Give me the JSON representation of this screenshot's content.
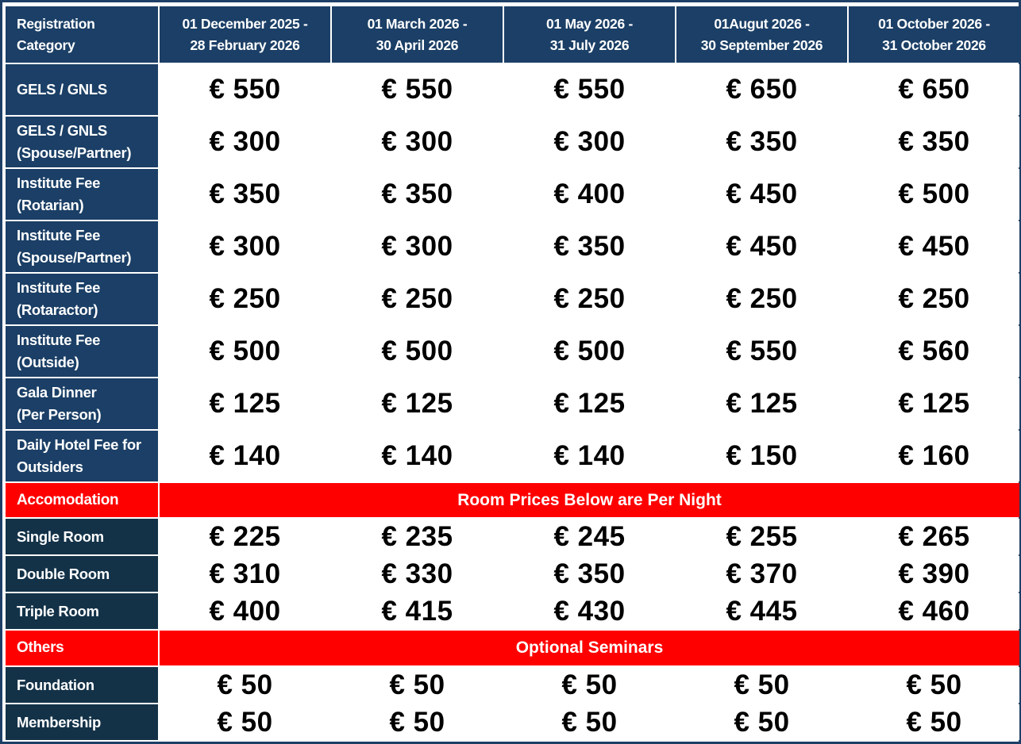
{
  "header": {
    "category": "Registration\nCategory",
    "periods": [
      "01 December 2025 -\n28 February 2026",
      "01 March 2026  -\n30 April 2026",
      "01 May 2026 -\n31 July 2026",
      "01Augut 2026 -\n30 September 2026",
      "01 October 2026  -\n31 October 2026"
    ]
  },
  "registration_rows": [
    {
      "label": "GELS / GNLS",
      "values": [
        "€ 550",
        "€ 550",
        "€ 550",
        "€ 650",
        "€ 650"
      ]
    },
    {
      "label": "GELS / GNLS\n(Spouse/Partner)",
      "values": [
        "€ 300",
        "€ 300",
        "€ 300",
        "€ 350",
        "€ 350"
      ]
    },
    {
      "label": "Institute Fee\n(Rotarian)",
      "values": [
        "€ 350",
        "€ 350",
        "€ 400",
        "€ 450",
        "€ 500"
      ]
    },
    {
      "label": "Institute Fee\n(Spouse/Partner)",
      "values": [
        "€ 300",
        "€ 300",
        "€ 350",
        "€ 450",
        "€ 450"
      ]
    },
    {
      "label": "Institute Fee\n(Rotaractor)",
      "values": [
        "€ 250",
        "€ 250",
        "€ 250",
        "€ 250",
        "€ 250"
      ]
    },
    {
      "label": "Institute Fee\n(Outside)",
      "values": [
        "€ 500",
        "€ 500",
        "€ 500",
        "€ 550",
        "€ 560"
      ]
    },
    {
      "label": "Gala Dinner\n(Per Person)",
      "values": [
        "€ 125",
        "€ 125",
        "€ 125",
        "€ 125",
        "€ 125"
      ]
    },
    {
      "label": "Daily Hotel Fee for\nOutsiders",
      "values": [
        "€ 140",
        "€ 140",
        "€ 140",
        "€ 150",
        "€ 160"
      ]
    }
  ],
  "accommodation": {
    "label": "Accomodation",
    "note": "Room Prices Below are Per Night",
    "rows": [
      {
        "label": "Single Room",
        "values": [
          "€ 225",
          "€ 235",
          "€ 245",
          "€ 255",
          "€ 265"
        ]
      },
      {
        "label": "Double Room",
        "values": [
          "€ 310",
          "€ 330",
          "€ 350",
          "€ 370",
          "€ 390"
        ]
      },
      {
        "label": "Triple Room",
        "values": [
          "€ 400",
          "€ 415",
          "€ 430",
          "€ 445",
          "€ 460"
        ]
      }
    ]
  },
  "others": {
    "label": "Others",
    "note": "Optional Seminars",
    "rows": [
      {
        "label": "Foundation",
        "values": [
          "€ 50",
          "€ 50",
          "€ 50",
          "€ 50",
          "€ 50"
        ]
      },
      {
        "label": "Membership",
        "values": [
          "€ 50",
          "€ 50",
          "€ 50",
          "€ 50",
          "€ 50"
        ]
      }
    ]
  },
  "colors": {
    "header_blue": "#1b3f66",
    "dark_blue": "#133248",
    "section_red": "#ff0000"
  }
}
